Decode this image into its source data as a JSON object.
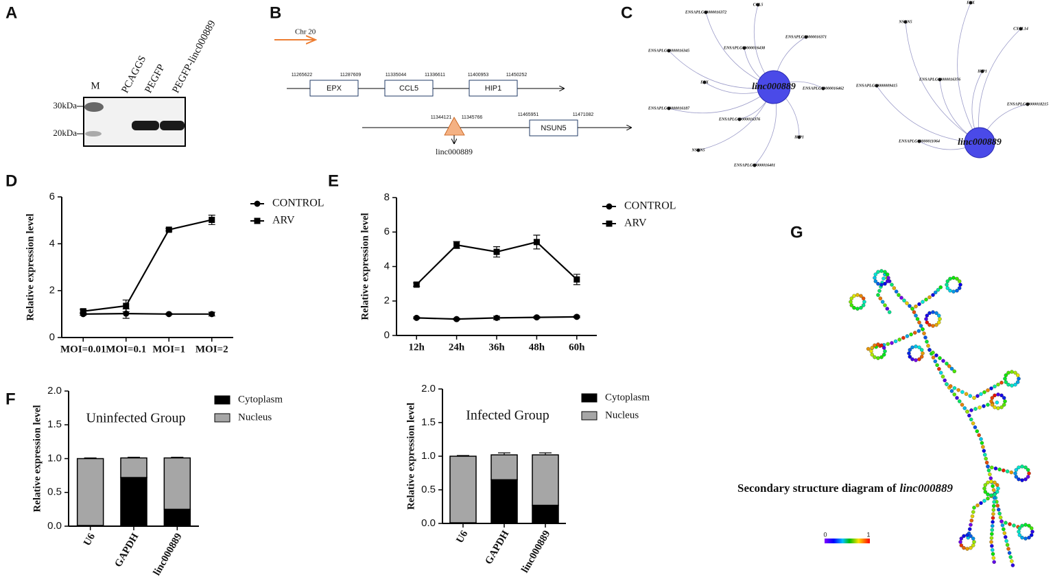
{
  "panel_labels": [
    "A",
    "B",
    "C",
    "D",
    "E",
    "F",
    "G"
  ],
  "gel": {
    "lanes": [
      "M",
      "PCAGGS",
      "PEGFP",
      "PEGFP-linc000889"
    ],
    "markers": [
      "30kDa",
      "20kDa"
    ]
  },
  "gene_map": {
    "chromosome": "Chr 20",
    "genes": [
      {
        "name": "EPX",
        "start": 11265622,
        "end": 11287609
      },
      {
        "name": "CCL5",
        "start": 11335044,
        "end": 11336611
      },
      {
        "name": "HIP1",
        "start": 11400953,
        "end": 11450252
      },
      {
        "name": "NSUN5",
        "start": 11465951,
        "end": 11471082
      }
    ],
    "lncrna": {
      "name": "linc000889",
      "start": 11344121,
      "end": 11345766
    }
  },
  "networks": [
    {
      "center": "linc000889",
      "nodes": [
        "ENSAPLG00000016372",
        "CCL5",
        "ENSAPLG00000016371",
        "ENSAPLG00000016345",
        "ENSAPLG00000016438",
        "EPX",
        "ENSAPLG00000016462",
        "ENSAPLG00000016187",
        "ENSAPLG00000016376",
        "HIP1",
        "NSUN5",
        "ENSAPLG00000016401"
      ]
    },
    {
      "center": "linc000889",
      "nodes": [
        "EPX",
        "NSUN5",
        "CXCL14",
        "ENSAPLG00000009415",
        "ENSAPLG00000016376",
        "HIP1",
        "ENSAPLG00000018215",
        "ENSAPLG00000011064"
      ]
    }
  ],
  "structure": {
    "caption": "Secondary structure diagram of",
    "caption_name": "linc000889",
    "scale": [
      0,
      1
    ]
  },
  "chart_data": [
    {
      "type": "line",
      "y_label": "Relative expression level",
      "categories": [
        "MOI=0.01",
        "MOI=0.1",
        "MOI=1",
        "MOI=2"
      ],
      "series": [
        {
          "name": "CONTROL",
          "color": "#000000",
          "marker": "circle",
          "values": [
            1.0,
            1.02,
            1.0,
            1.0
          ],
          "errors": [
            0.05,
            0.2,
            0.03,
            0.08
          ]
        },
        {
          "name": "ARV",
          "color": "#000000",
          "marker": "square",
          "values": [
            1.12,
            1.35,
            4.6,
            5.02
          ],
          "errors": [
            0.08,
            0.25,
            0.05,
            0.2
          ]
        }
      ],
      "ylim": [
        0,
        6
      ],
      "yticks": [
        0,
        2,
        4,
        6
      ],
      "legend": "right"
    },
    {
      "type": "line",
      "y_label": "Relative expression level",
      "categories": [
        "12h",
        "24h",
        "36h",
        "48h",
        "60h"
      ],
      "series": [
        {
          "name": "CONTROL",
          "color": "#000000",
          "marker": "circle",
          "values": [
            1.02,
            0.95,
            1.02,
            1.05,
            1.08
          ],
          "errors": [
            0.05,
            0.05,
            0.1,
            0.05,
            0.05
          ]
        },
        {
          "name": "ARV",
          "color": "#000000",
          "marker": "square",
          "values": [
            2.95,
            5.25,
            4.85,
            5.42,
            3.25
          ],
          "errors": [
            0.1,
            0.2,
            0.3,
            0.4,
            0.3
          ]
        }
      ],
      "ylim": [
        0,
        8
      ],
      "yticks": [
        0,
        2,
        4,
        6,
        8
      ],
      "legend": "right"
    },
    {
      "type": "stacked_bar",
      "title": "Uninfected Group",
      "y_label": "Relative expression level",
      "categories": [
        "U6",
        "GAPDH",
        "linc000889"
      ],
      "series": [
        {
          "name": "Cytoplasm",
          "color": "#000000",
          "values": [
            0.01,
            0.72,
            0.25
          ],
          "errors": [
            0.005,
            0.01,
            0.02
          ]
        },
        {
          "name": "Nucleus",
          "color": "#a6a6a6",
          "values": [
            0.99,
            0.29,
            0.76
          ],
          "errors": [
            0.01,
            0.01,
            0.01
          ]
        }
      ],
      "ylim": [
        0,
        2
      ],
      "yticks": [
        {
          "value": 0,
          "label": "0.0"
        },
        0.5,
        {
          "value": 1,
          "label": "1.0"
        },
        1.5,
        {
          "value": 2,
          "label": "2.0"
        }
      ],
      "legend": "right"
    },
    {
      "type": "stacked_bar",
      "title": "Infected Group",
      "y_label": "Relative expression level",
      "categories": [
        "U6",
        "GAPDH",
        "linc000889"
      ],
      "series": [
        {
          "name": "Cytoplasm",
          "color": "#000000",
          "values": [
            0.01,
            0.65,
            0.27
          ],
          "errors": [
            0.005,
            0.01,
            0.01
          ]
        },
        {
          "name": "Nucleus",
          "color": "#a6a6a6",
          "values": [
            0.99,
            0.37,
            0.75
          ],
          "errors": [
            0.01,
            0.03,
            0.03
          ]
        }
      ],
      "ylim": [
        0,
        2
      ],
      "yticks": [
        {
          "value": 0,
          "label": "0.0"
        },
        0.5,
        {
          "value": 1,
          "label": "1.0"
        },
        1.5,
        {
          "value": 2,
          "label": "2.0"
        }
      ],
      "legend": "right"
    }
  ]
}
